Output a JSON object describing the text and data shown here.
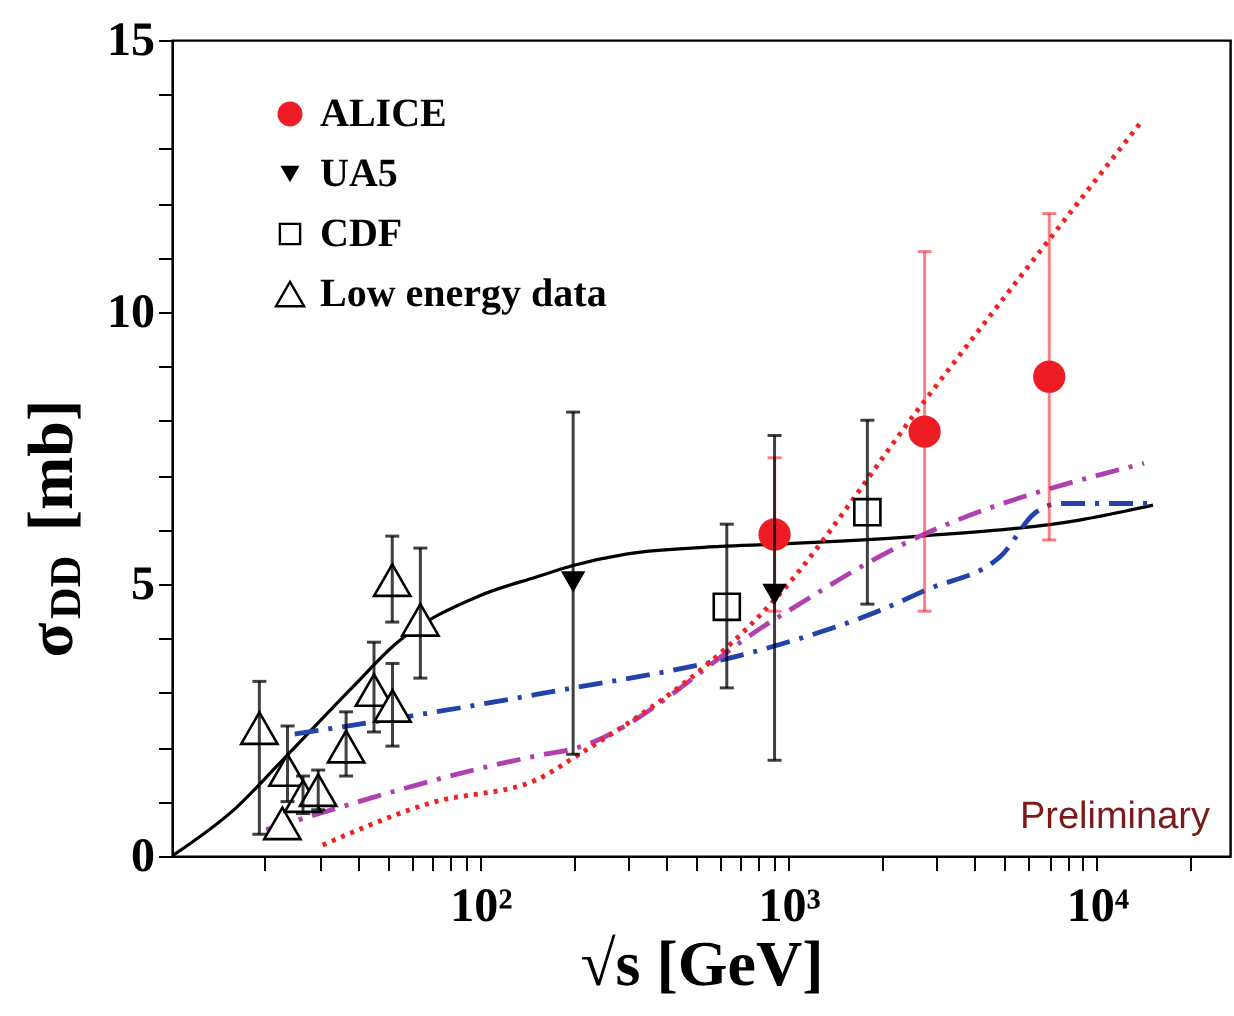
{
  "chart_data": {
    "type": "scatter",
    "xlabel": "√s [GeV]",
    "ylabel": "σ$_{DD}$ [mb]",
    "log": "x",
    "xlim": [
      10,
      27000
    ],
    "xticks": [
      {
        "value": 20,
        "label": null
      },
      {
        "value": 30,
        "label": null
      },
      {
        "value": 40,
        "label": null
      },
      {
        "value": 50,
        "label": null
      },
      {
        "value": 60,
        "label": null
      },
      {
        "value": 70,
        "label": null
      },
      {
        "value": 80,
        "label": null
      },
      {
        "value": 90,
        "label": null
      },
      {
        "value": 100,
        "label": "10²"
      },
      {
        "value": 200,
        "label": null
      },
      {
        "value": 300,
        "label": null
      },
      {
        "value": 400,
        "label": null
      },
      {
        "value": 500,
        "label": null
      },
      {
        "value": 600,
        "label": null
      },
      {
        "value": 700,
        "label": null
      },
      {
        "value": 800,
        "label": null
      },
      {
        "value": 900,
        "label": null
      },
      {
        "value": 1000,
        "label": "10³"
      },
      {
        "value": 2000,
        "label": null
      },
      {
        "value": 3000,
        "label": null
      },
      {
        "value": 4000,
        "label": null
      },
      {
        "value": 5000,
        "label": null
      },
      {
        "value": 6000,
        "label": null
      },
      {
        "value": 7000,
        "label": null
      },
      {
        "value": 8000,
        "label": null
      },
      {
        "value": 9000,
        "label": null
      },
      {
        "value": 10000,
        "label": "10⁴"
      },
      {
        "value": 20000,
        "label": null
      }
    ],
    "ylim": [
      0,
      15
    ],
    "yticks": [
      0,
      {
        "value": 1,
        "label": null
      },
      {
        "value": 2,
        "label": null
      },
      {
        "value": 3,
        "label": null
      },
      {
        "value": 4,
        "label": null
      },
      5,
      {
        "value": 6,
        "label": null
      },
      {
        "value": 7,
        "label": null
      },
      {
        "value": 8,
        "label": null
      },
      {
        "value": 9,
        "label": null
      },
      10,
      {
        "value": 11,
        "label": null
      },
      {
        "value": 12,
        "label": null
      },
      {
        "value": 13,
        "label": null
      },
      {
        "value": 14,
        "label": null
      },
      15
    ],
    "grid": false,
    "legend": "top left",
    "series": [
      {
        "type": "line",
        "color": "#000000",
        "line_style": "solid",
        "x": [
          10,
          16.1,
          22.8,
          38.6,
          53.4,
          100,
          152,
          200,
          297,
          600,
          900,
          2680,
          8870,
          15200
        ],
        "values": [
          0,
          0.88,
          1.76,
          3.11,
          3.91,
          4.79,
          5.13,
          5.34,
          5.55,
          5.69,
          5.73,
          5.88,
          6.18,
          6.45
        ]
      },
      {
        "type": "line",
        "color": "#2244aa",
        "line_style": "dashed",
        "x": [
          25,
          152,
          900,
          1990,
          2790,
          4870,
          6280,
          7600,
          15200
        ],
        "values": [
          2.24,
          2.97,
          3.86,
          4.52,
          4.89,
          5.51,
          6.3,
          6.48,
          6.48
        ]
      },
      {
        "type": "line",
        "color": "#b040b0",
        "line_style": "dashed",
        "x": [
          20.2,
          152,
          200,
          894,
          2200,
          14200
        ],
        "values": [
          0.48,
          1.84,
          1.97,
          4.34,
          5.65,
          7.22
        ]
      },
      {
        "type": "line",
        "color": "#ee2222",
        "line_style": "dotted",
        "x": [
          30.8,
          68.5,
          152,
          200,
          900,
          2680,
          13800
        ],
        "values": [
          0.2,
          0.97,
          1.4,
          1.8,
          4.71,
          8.27,
          13.47
        ]
      },
      {
        "name": "ALICE",
        "marker": "circle",
        "color": "#ee1c25",
        "x": [
          900,
          2760,
          7000
        ],
        "values": [
          5.91,
          7.8,
          8.81
        ],
        "errors": [
          [
            4.5,
            7.32
          ],
          [
            4.5,
            11.11
          ],
          [
            5.81,
            11.81
          ]
        ]
      },
      {
        "name": "UA5",
        "marker": "triangle_down",
        "color": "#000000",
        "x": [
          200,
          900
        ],
        "values": [
          5.04,
          4.81
        ],
        "errors": [
          [
            1.87,
            8.16
          ],
          [
            1.76,
            7.73
          ]
        ]
      },
      {
        "name": "CDF",
        "marker": "square",
        "color": "#000000",
        "x": [
          630,
          1800
        ],
        "values": [
          4.58,
          6.32
        ],
        "errors": [
          [
            3.09,
            6.1
          ],
          [
            4.63,
            8.01
          ]
        ]
      },
      {
        "name": "Low energy data",
        "marker": "triangle",
        "color": "#000000",
        "x": [
          19.2,
          23.7,
          22.8,
          26.6,
          29.8,
          36.7,
          45.2,
          51.9,
          51.8,
          63.9
        ],
        "values": [
          2.35,
          1.58,
          0.6,
          1.1,
          1.21,
          2.01,
          3.05,
          2.76,
          5.07,
          4.34
        ],
        "errors": [
          [
            0.4,
            3.21
          ],
          [
            1.0,
            2.39
          ],
          null,
          [
            0.78,
            1.47
          ],
          [
            0.85,
            1.58
          ],
          [
            1.47,
            2.65
          ],
          [
            2.28,
            3.93
          ],
          [
            2.02,
            3.54
          ],
          [
            4.3,
            5.88
          ],
          [
            3.27,
            5.66
          ]
        ]
      }
    ],
    "annotations": [
      "Preliminary"
    ]
  }
}
